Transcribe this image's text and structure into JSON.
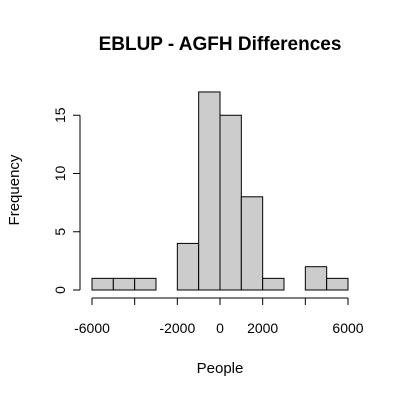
{
  "chart_data": {
    "type": "bar",
    "title": "EBLUP - AGFH Differences",
    "xlabel": "People",
    "ylabel": "Frequency",
    "bin_width": 1000,
    "bins": [
      {
        "start": -6000,
        "end": -5000,
        "count": 1
      },
      {
        "start": -5000,
        "end": -4000,
        "count": 1
      },
      {
        "start": -4000,
        "end": -3000,
        "count": 1
      },
      {
        "start": -3000,
        "end": -2000,
        "count": 0
      },
      {
        "start": -2000,
        "end": -1000,
        "count": 4
      },
      {
        "start": -1000,
        "end": 0,
        "count": 17
      },
      {
        "start": 0,
        "end": 1000,
        "count": 15
      },
      {
        "start": 1000,
        "end": 2000,
        "count": 8
      },
      {
        "start": 2000,
        "end": 3000,
        "count": 1
      },
      {
        "start": 3000,
        "end": 4000,
        "count": 0
      },
      {
        "start": 4000,
        "end": 5000,
        "count": 2
      },
      {
        "start": 5000,
        "end": 6000,
        "count": 1
      }
    ],
    "x_ticks": [
      -6000,
      -2000,
      0,
      2000,
      6000
    ],
    "x_tick_labels": [
      "-6000",
      "-2000",
      "0",
      "2000",
      "6000"
    ],
    "y_ticks": [
      0,
      5,
      10,
      15
    ],
    "y_tick_labels": [
      "0",
      "5",
      "10",
      "15"
    ],
    "xlim": [
      -6000,
      6000
    ],
    "ylim": [
      0,
      17
    ],
    "grid": false,
    "bar_color": "#cccccc",
    "edge_color": "#000000"
  }
}
